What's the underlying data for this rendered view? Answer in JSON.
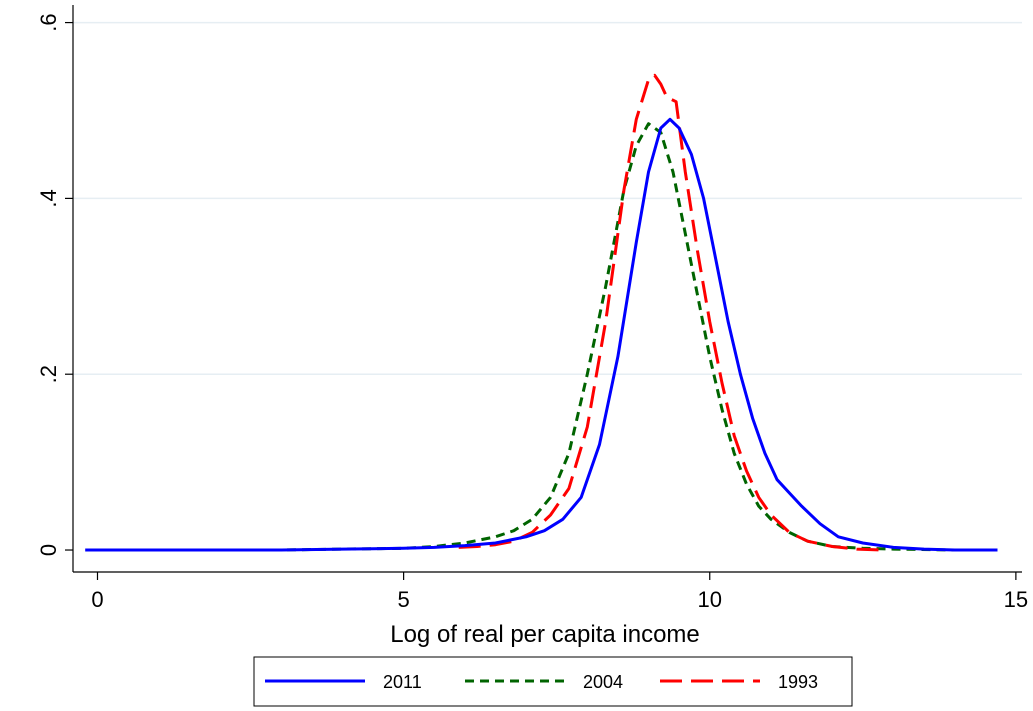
{
  "chart_data": {
    "type": "line",
    "title": "",
    "xlabel": "Log of real per capita income",
    "ylabel": "",
    "xlim": [
      -0.4,
      15.1
    ],
    "ylim": [
      -0.025,
      0.62
    ],
    "xticks": [
      {
        "value": 0,
        "label": "0"
      },
      {
        "value": 5,
        "label": "5"
      },
      {
        "value": 10,
        "label": "10"
      },
      {
        "value": 15,
        "label": "15"
      }
    ],
    "yticks": [
      {
        "value": 0,
        "label": "0"
      },
      {
        "value": 0.2,
        "label": ".2"
      },
      {
        "value": 0.4,
        "label": ".4"
      },
      {
        "value": 0.6,
        "label": ".6"
      }
    ],
    "grid": "horizontal",
    "legend_placement": "bottom",
    "series": [
      {
        "name": "2011",
        "color": "#0000ff",
        "dash": "solid",
        "x": [
          -0.2,
          1,
          2,
          3,
          4,
          5,
          5.5,
          6,
          6.5,
          7,
          7.3,
          7.6,
          7.9,
          8.2,
          8.5,
          8.8,
          9.0,
          9.2,
          9.35,
          9.5,
          9.7,
          9.9,
          10.1,
          10.3,
          10.5,
          10.7,
          10.9,
          11.1,
          11.3,
          11.5,
          11.8,
          12.1,
          12.5,
          13,
          13.5,
          14,
          14.7
        ],
        "y": [
          0,
          0,
          0,
          0,
          0.001,
          0.002,
          0.003,
          0.005,
          0.008,
          0.015,
          0.022,
          0.035,
          0.06,
          0.12,
          0.22,
          0.35,
          0.43,
          0.48,
          0.49,
          0.48,
          0.45,
          0.4,
          0.33,
          0.26,
          0.2,
          0.15,
          0.11,
          0.08,
          0.065,
          0.05,
          0.03,
          0.015,
          0.008,
          0.003,
          0.001,
          0,
          0
        ]
      },
      {
        "name": "2004",
        "color": "#006400",
        "dash": "medium",
        "x": [
          0.4,
          1,
          2,
          3,
          4,
          5,
          5.5,
          6,
          6.5,
          6.8,
          7.1,
          7.4,
          7.7,
          8.0,
          8.3,
          8.6,
          8.8,
          9.0,
          9.2,
          9.4,
          9.6,
          9.8,
          10.0,
          10.2,
          10.4,
          10.6,
          10.8,
          11.0,
          11.3,
          11.6,
          12,
          12.5,
          13,
          14,
          14.5
        ],
        "y": [
          0,
          0,
          0,
          0,
          0.001,
          0.002,
          0.004,
          0.008,
          0.015,
          0.022,
          0.035,
          0.06,
          0.11,
          0.2,
          0.3,
          0.41,
          0.46,
          0.485,
          0.475,
          0.43,
          0.36,
          0.29,
          0.22,
          0.16,
          0.11,
          0.075,
          0.05,
          0.035,
          0.02,
          0.01,
          0.004,
          0.002,
          0.001,
          0,
          0
        ]
      },
      {
        "name": "1993",
        "color": "#ff0000",
        "dash": "long",
        "x": [
          5.9,
          6.2,
          6.5,
          6.8,
          7.1,
          7.4,
          7.7,
          8.0,
          8.3,
          8.6,
          8.8,
          9.0,
          9.1,
          9.2,
          9.3,
          9.45,
          9.6,
          9.8,
          10.0,
          10.2,
          10.4,
          10.6,
          10.8,
          11.0,
          11.3,
          11.6,
          12,
          12.4,
          12.8
        ],
        "y": [
          0.003,
          0.004,
          0.006,
          0.01,
          0.02,
          0.04,
          0.07,
          0.14,
          0.26,
          0.41,
          0.49,
          0.535,
          0.54,
          0.53,
          0.515,
          0.51,
          0.43,
          0.34,
          0.26,
          0.19,
          0.13,
          0.09,
          0.06,
          0.04,
          0.02,
          0.01,
          0.004,
          0.001,
          0
        ]
      }
    ]
  }
}
